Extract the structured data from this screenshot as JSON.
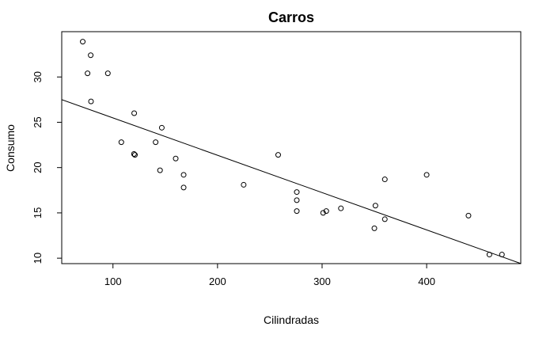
{
  "chart_data": {
    "type": "scatter",
    "title": "Carros",
    "xlabel": "Cilindradas",
    "ylabel": "Consumo",
    "xlim": [
      51,
      490
    ],
    "ylim": [
      9.4,
      35.0
    ],
    "x_ticks": [
      100,
      200,
      300,
      400
    ],
    "y_ticks": [
      10,
      15,
      20,
      25,
      30
    ],
    "grid": false,
    "points": [
      {
        "x": 71.1,
        "y": 33.9
      },
      {
        "x": 75.7,
        "y": 30.4
      },
      {
        "x": 78.7,
        "y": 32.4
      },
      {
        "x": 79.0,
        "y": 27.3
      },
      {
        "x": 95.1,
        "y": 30.4
      },
      {
        "x": 108.0,
        "y": 22.8
      },
      {
        "x": 120.1,
        "y": 21.5
      },
      {
        "x": 120.3,
        "y": 26.0
      },
      {
        "x": 121.0,
        "y": 21.4
      },
      {
        "x": 140.8,
        "y": 22.8
      },
      {
        "x": 145.0,
        "y": 19.7
      },
      {
        "x": 146.7,
        "y": 24.4
      },
      {
        "x": 160.0,
        "y": 21.0
      },
      {
        "x": 167.6,
        "y": 19.2
      },
      {
        "x": 167.6,
        "y": 17.8
      },
      {
        "x": 225.0,
        "y": 18.1
      },
      {
        "x": 258.0,
        "y": 21.4
      },
      {
        "x": 275.8,
        "y": 16.4
      },
      {
        "x": 275.8,
        "y": 17.3
      },
      {
        "x": 275.8,
        "y": 15.2
      },
      {
        "x": 301.0,
        "y": 15.0
      },
      {
        "x": 304.0,
        "y": 15.2
      },
      {
        "x": 318.0,
        "y": 15.5
      },
      {
        "x": 350.0,
        "y": 13.3
      },
      {
        "x": 351.0,
        "y": 15.8
      },
      {
        "x": 360.0,
        "y": 14.3
      },
      {
        "x": 360.0,
        "y": 18.7
      },
      {
        "x": 400.0,
        "y": 19.2
      },
      {
        "x": 440.0,
        "y": 14.7
      },
      {
        "x": 460.0,
        "y": 10.4
      },
      {
        "x": 472.0,
        "y": 10.4
      }
    ],
    "regression_line": {
      "intercept": 29.6,
      "slope": -0.0412
    }
  }
}
